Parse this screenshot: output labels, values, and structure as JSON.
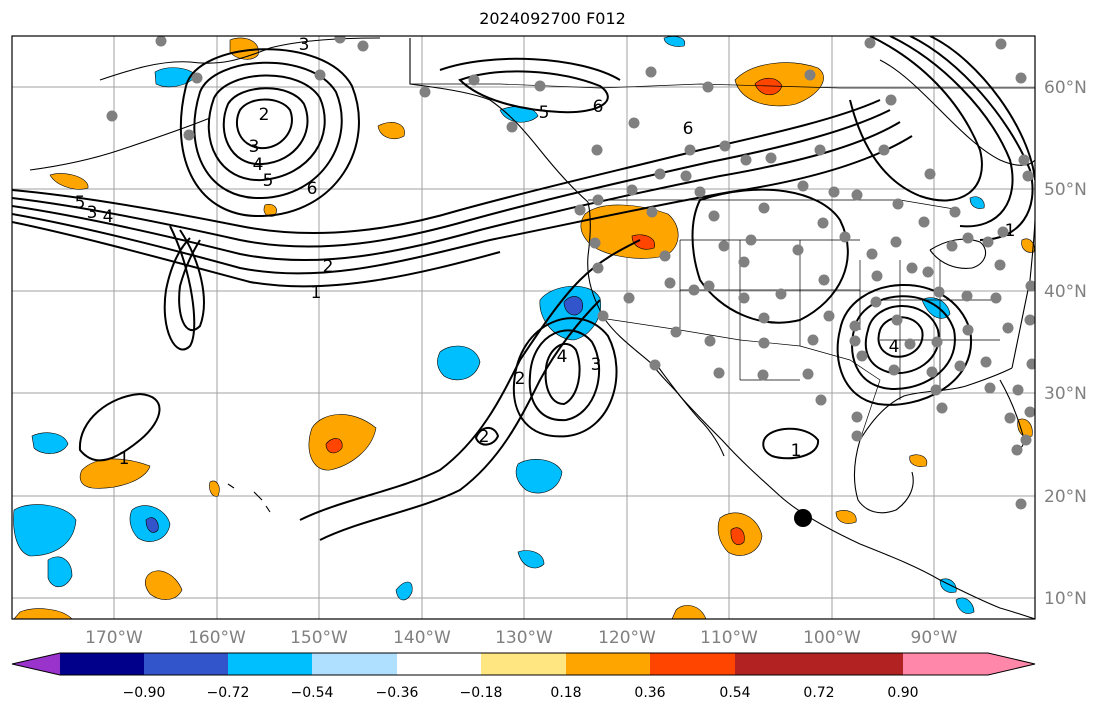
{
  "title": "2024092700 F012",
  "map": {
    "lon_ticks": [
      "170°W",
      "160°W",
      "150°W",
      "140°W",
      "130°W",
      "120°W",
      "110°W",
      "100°W",
      "90°W"
    ],
    "lat_ticks": [
      "60°N",
      "50°N",
      "40°N",
      "30°N",
      "20°N",
      "10°N"
    ],
    "contour_labels": [
      "1",
      "2",
      "3",
      "4",
      "5",
      "6"
    ]
  },
  "colorbar": {
    "labels": [
      "−0.90",
      "−0.72",
      "−0.54",
      "−0.36",
      "−0.18",
      "0.18",
      "0.36",
      "0.54",
      "0.72",
      "0.90"
    ],
    "colors": [
      "#9933cc",
      "#00008b",
      "#3355cc",
      "#00bfff",
      "#b0e0ff",
      "#ffffff",
      "#ffe680",
      "#ffa500",
      "#ff4500",
      "#b22222",
      "#ff88aa"
    ]
  }
}
